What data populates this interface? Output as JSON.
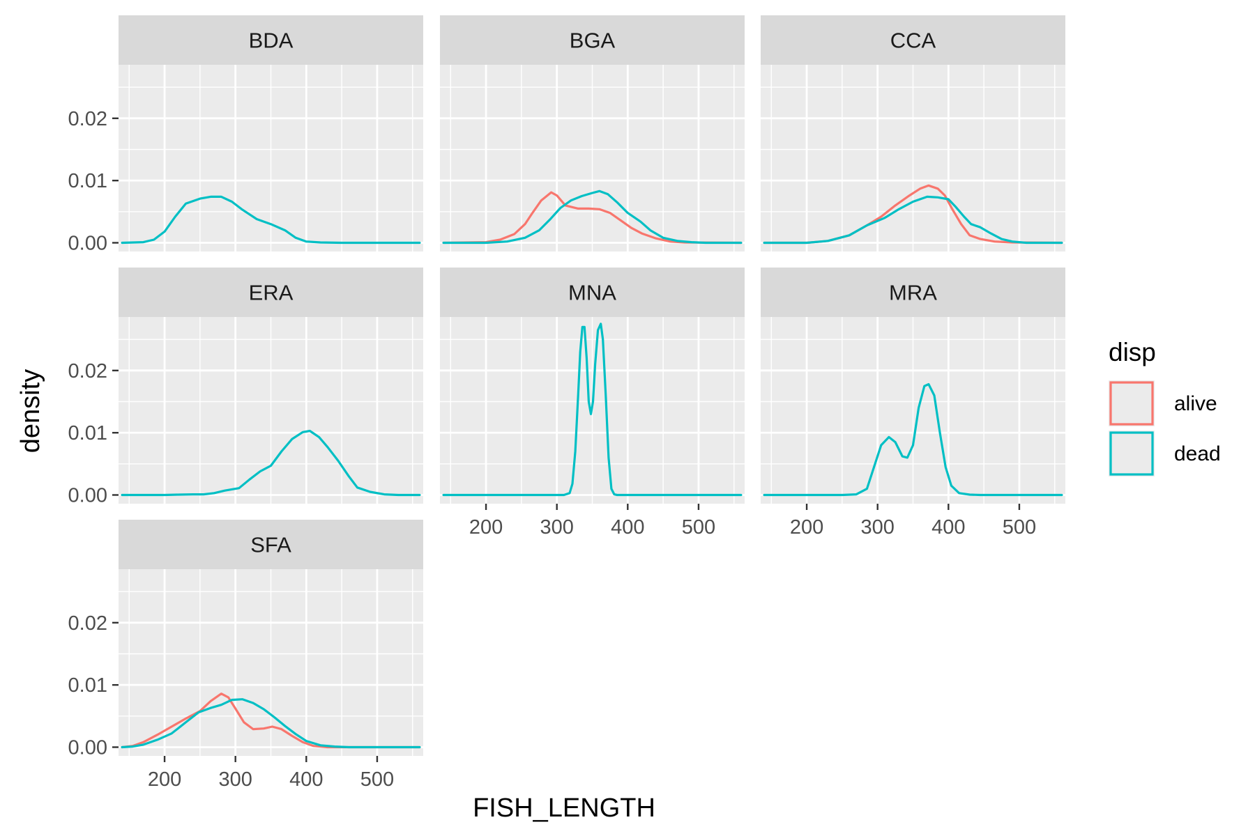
{
  "chart_data": {
    "type": "line",
    "kind": "faceted density plot",
    "xlabel": "FISH_LENGTH",
    "ylabel": "density",
    "xlim": [
      135,
      565
    ],
    "ylim": [
      -0.0014,
      0.0286
    ],
    "x_ticks": [
      200,
      300,
      400,
      500
    ],
    "x_tick_labels": [
      "200",
      "300",
      "400",
      "500"
    ],
    "y_ticks": [
      0,
      0.01,
      0.02
    ],
    "y_tick_labels": [
      "0.00",
      "0.01",
      "0.02"
    ],
    "grid": true,
    "legend": {
      "title": "disp",
      "position": "right",
      "entries": [
        {
          "key": "alive",
          "label": "alive",
          "color": "#F8766D"
        },
        {
          "key": "dead",
          "label": "dead",
          "color": "#00BFC4"
        }
      ]
    },
    "colors": {
      "alive": "#F8766D",
      "dead": "#00BFC4",
      "panel_bg": "#EBEBEB",
      "strip_bg": "#D9D9D9"
    },
    "facets": [
      {
        "label": "BDA",
        "series": [
          {
            "name": "dead",
            "points": [
              [
                140,
                0
              ],
              [
                170,
                0.0001
              ],
              [
                185,
                0.0005
              ],
              [
                200,
                0.0018
              ],
              [
                215,
                0.0042
              ],
              [
                230,
                0.0063
              ],
              [
                250,
                0.0071
              ],
              [
                265,
                0.0074
              ],
              [
                280,
                0.0074
              ],
              [
                295,
                0.0066
              ],
              [
                310,
                0.0053
              ],
              [
                330,
                0.0038
              ],
              [
                350,
                0.003
              ],
              [
                370,
                0.002
              ],
              [
                385,
                0.0008
              ],
              [
                400,
                0.0002
              ],
              [
                420,
                5e-05
              ],
              [
                450,
                0
              ],
              [
                560,
                0
              ]
            ]
          }
        ]
      },
      {
        "label": "BGA",
        "series": [
          {
            "name": "alive",
            "points": [
              [
                140,
                0
              ],
              [
                200,
                0.0001
              ],
              [
                220,
                0.0005
              ],
              [
                240,
                0.0014
              ],
              [
                255,
                0.003
              ],
              [
                265,
                0.0047
              ],
              [
                278,
                0.0068
              ],
              [
                292,
                0.0081
              ],
              [
                300,
                0.0076
              ],
              [
                312,
                0.006
              ],
              [
                330,
                0.0055
              ],
              [
                345,
                0.0055
              ],
              [
                360,
                0.0054
              ],
              [
                375,
                0.0048
              ],
              [
                390,
                0.0036
              ],
              [
                405,
                0.0024
              ],
              [
                420,
                0.0015
              ],
              [
                440,
                0.0007
              ],
              [
                460,
                0.0002
              ],
              [
                480,
                5e-05
              ],
              [
                560,
                0
              ]
            ]
          },
          {
            "name": "dead",
            "points": [
              [
                140,
                0
              ],
              [
                200,
                0
              ],
              [
                230,
                0.0002
              ],
              [
                255,
                0.0008
              ],
              [
                275,
                0.002
              ],
              [
                290,
                0.0037
              ],
              [
                305,
                0.0056
              ],
              [
                320,
                0.0068
              ],
              [
                335,
                0.0075
              ],
              [
                350,
                0.008
              ],
              [
                360,
                0.0083
              ],
              [
                372,
                0.0078
              ],
              [
                385,
                0.0065
              ],
              [
                400,
                0.0048
              ],
              [
                418,
                0.0034
              ],
              [
                432,
                0.002
              ],
              [
                450,
                0.0008
              ],
              [
                470,
                0.0003
              ],
              [
                490,
                0.0001
              ],
              [
                510,
                0
              ],
              [
                560,
                0
              ]
            ]
          }
        ]
      },
      {
        "label": "CCA",
        "series": [
          {
            "name": "alive",
            "points": [
              [
                140,
                0
              ],
              [
                200,
                0
              ],
              [
                230,
                0.0003
              ],
              [
                260,
                0.0012
              ],
              [
                285,
                0.0028
              ],
              [
                305,
                0.0042
              ],
              [
                325,
                0.006
              ],
              [
                345,
                0.0076
              ],
              [
                360,
                0.0087
              ],
              [
                372,
                0.0092
              ],
              [
                385,
                0.0087
              ],
              [
                395,
                0.0076
              ],
              [
                405,
                0.0055
              ],
              [
                418,
                0.003
              ],
              [
                430,
                0.0012
              ],
              [
                445,
                0.0006
              ],
              [
                465,
                0.0002
              ],
              [
                490,
                5e-05
              ],
              [
                560,
                0
              ]
            ]
          },
          {
            "name": "dead",
            "points": [
              [
                140,
                0
              ],
              [
                200,
                0
              ],
              [
                230,
                0.0003
              ],
              [
                260,
                0.0012
              ],
              [
                285,
                0.0028
              ],
              [
                310,
                0.004
              ],
              [
                330,
                0.0054
              ],
              [
                350,
                0.0066
              ],
              [
                370,
                0.0074
              ],
              [
                385,
                0.0073
              ],
              [
                400,
                0.007
              ],
              [
                410,
                0.0058
              ],
              [
                422,
                0.0042
              ],
              [
                432,
                0.003
              ],
              [
                445,
                0.0025
              ],
              [
                460,
                0.0015
              ],
              [
                475,
                0.0006
              ],
              [
                490,
                0.0002
              ],
              [
                510,
                0
              ],
              [
                560,
                0
              ]
            ]
          }
        ]
      },
      {
        "label": "ERA",
        "series": [
          {
            "name": "dead",
            "points": [
              [
                140,
                0
              ],
              [
                200,
                0
              ],
              [
                220,
                5e-05
              ],
              [
                240,
                0.0001
              ],
              [
                255,
                0.0001
              ],
              [
                270,
                0.0003
              ],
              [
                285,
                0.0007
              ],
              [
                305,
                0.0011
              ],
              [
                320,
                0.0025
              ],
              [
                335,
                0.0038
              ],
              [
                350,
                0.0047
              ],
              [
                365,
                0.007
              ],
              [
                380,
                0.009
              ],
              [
                395,
                0.0101
              ],
              [
                405,
                0.0103
              ],
              [
                418,
                0.0093
              ],
              [
                430,
                0.0077
              ],
              [
                445,
                0.0055
              ],
              [
                460,
                0.003
              ],
              [
                472,
                0.0012
              ],
              [
                490,
                0.0005
              ],
              [
                510,
                0.0001
              ],
              [
                530,
                0
              ],
              [
                560,
                0
              ]
            ]
          }
        ]
      },
      {
        "label": "MNA",
        "series": [
          {
            "name": "dead",
            "points": [
              [
                140,
                0
              ],
              [
                310,
                0
              ],
              [
                318,
                0.0003
              ],
              [
                322,
                0.0018
              ],
              [
                326,
                0.007
              ],
              [
                330,
                0.016
              ],
              [
                333,
                0.023
              ],
              [
                336,
                0.027
              ],
              [
                339,
                0.027
              ],
              [
                342,
                0.022
              ],
              [
                345,
                0.015
              ],
              [
                348,
                0.013
              ],
              [
                351,
                0.015
              ],
              [
                354,
                0.021
              ],
              [
                358,
                0.0265
              ],
              [
                362,
                0.0275
              ],
              [
                365,
                0.025
              ],
              [
                369,
                0.016
              ],
              [
                373,
                0.006
              ],
              [
                377,
                0.001
              ],
              [
                381,
                0.0001
              ],
              [
                385,
                0
              ],
              [
                560,
                0
              ]
            ]
          }
        ]
      },
      {
        "label": "MRA",
        "series": [
          {
            "name": "dead",
            "points": [
              [
                140,
                0
              ],
              [
                250,
                0
              ],
              [
                270,
                0.0001
              ],
              [
                285,
                0.001
              ],
              [
                295,
                0.0045
              ],
              [
                305,
                0.008
              ],
              [
                316,
                0.0093
              ],
              [
                325,
                0.0085
              ],
              [
                335,
                0.0062
              ],
              [
                342,
                0.006
              ],
              [
                350,
                0.008
              ],
              [
                358,
                0.014
              ],
              [
                366,
                0.0175
              ],
              [
                372,
                0.0178
              ],
              [
                380,
                0.016
              ],
              [
                388,
                0.01
              ],
              [
                396,
                0.0045
              ],
              [
                404,
                0.0015
              ],
              [
                415,
                0.0003
              ],
              [
                430,
                5e-05
              ],
              [
                445,
                0
              ],
              [
                560,
                0
              ]
            ]
          }
        ]
      },
      {
        "label": "SFA",
        "series": [
          {
            "name": "alive",
            "points": [
              [
                140,
                0
              ],
              [
                155,
                0.0002
              ],
              [
                170,
                0.0008
              ],
              [
                190,
                0.002
              ],
              [
                210,
                0.0033
              ],
              [
                230,
                0.0046
              ],
              [
                250,
                0.0058
              ],
              [
                265,
                0.0074
              ],
              [
                280,
                0.0086
              ],
              [
                290,
                0.008
              ],
              [
                300,
                0.0062
              ],
              [
                312,
                0.004
              ],
              [
                325,
                0.0029
              ],
              [
                340,
                0.003
              ],
              [
                352,
                0.0033
              ],
              [
                365,
                0.0029
              ],
              [
                380,
                0.0018
              ],
              [
                395,
                0.0008
              ],
              [
                410,
                0.0002
              ],
              [
                430,
                0
              ],
              [
                560,
                0
              ]
            ]
          },
          {
            "name": "dead",
            "points": [
              [
                140,
                0
              ],
              [
                155,
                0.0001
              ],
              [
                170,
                0.0004
              ],
              [
                190,
                0.0012
              ],
              [
                210,
                0.0022
              ],
              [
                230,
                0.004
              ],
              [
                248,
                0.0056
              ],
              [
                265,
                0.0063
              ],
              [
                280,
                0.0068
              ],
              [
                295,
                0.0076
              ],
              [
                310,
                0.0077
              ],
              [
                325,
                0.0071
              ],
              [
                340,
                0.0061
              ],
              [
                355,
                0.0048
              ],
              [
                370,
                0.0034
              ],
              [
                385,
                0.0021
              ],
              [
                400,
                0.001
              ],
              [
                420,
                0.0003
              ],
              [
                440,
                0.0001
              ],
              [
                460,
                0
              ],
              [
                560,
                0
              ]
            ]
          }
        ]
      }
    ]
  }
}
